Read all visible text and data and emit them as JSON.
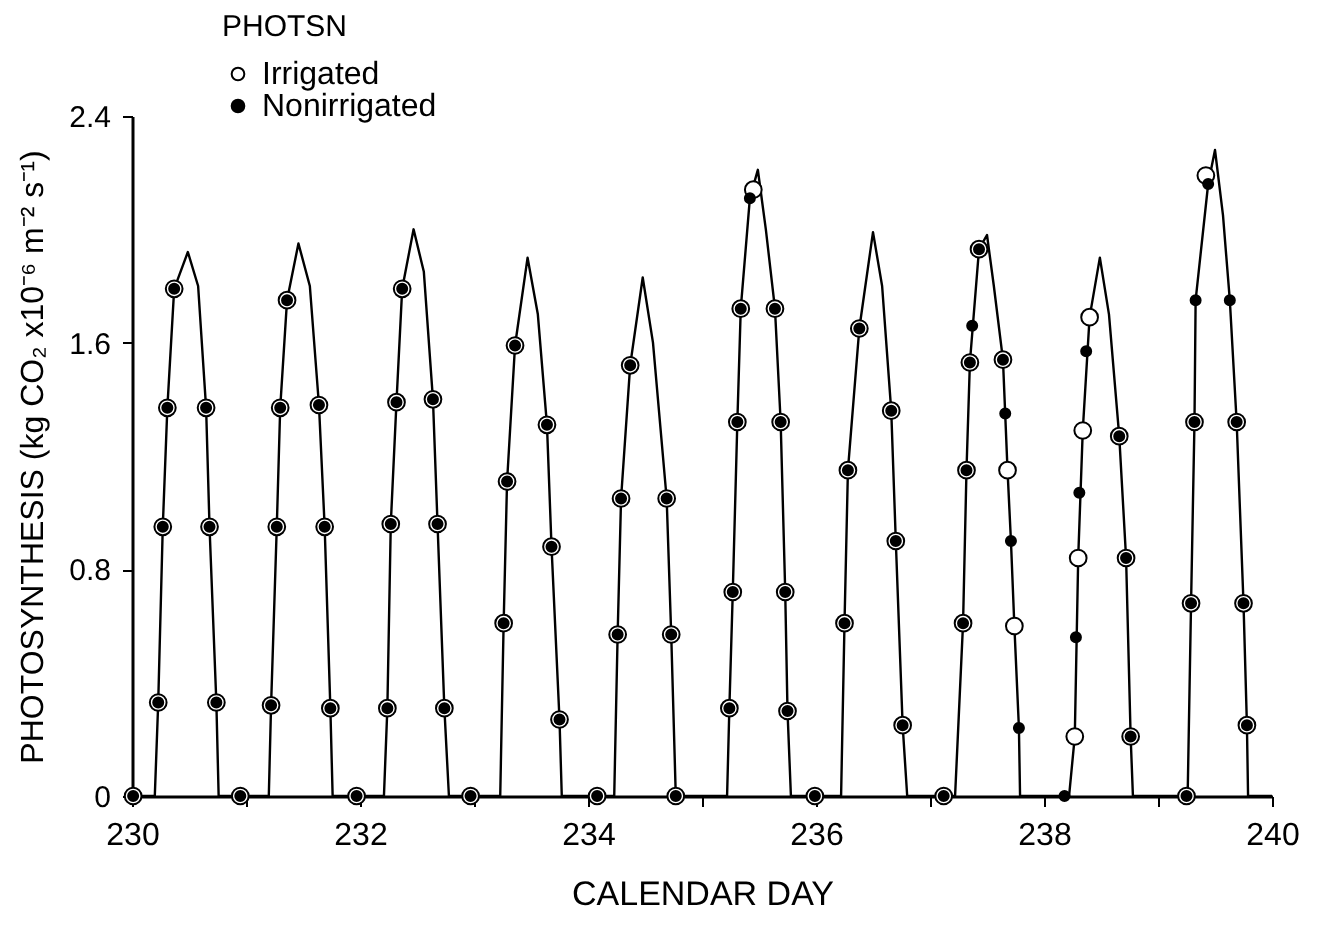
{
  "chart_data": {
    "type": "line",
    "xlabel": "CALENDAR DAY",
    "ylabel": "PHOTOSYNTHESIS (kg CO₂ x10⁻⁶ m⁻² s⁻¹)",
    "legend_title": "PHOTSN",
    "legend": "top left",
    "grid": false,
    "xlim": [
      230,
      240
    ],
    "ylim": [
      0,
      2.4
    ],
    "xticks": [
      230,
      {
        "value": 231,
        "label": null
      },
      232,
      {
        "value": 233,
        "label": null
      },
      234,
      {
        "value": 235,
        "label": null
      },
      236,
      {
        "value": 237,
        "label": null
      },
      238,
      {
        "value": 239,
        "label": null
      },
      240
    ],
    "yticks": [
      0,
      0.8,
      1.6,
      2.4
    ],
    "series": [
      {
        "type": "line",
        "color": "#000000",
        "marker": "none",
        "line_style": "solid",
        "x": [
          230,
          230.2,
          230.23,
          230.27,
          230.31,
          230.37,
          230.49,
          230.58,
          230.65,
          230.68,
          230.74,
          230.76,
          231.2,
          231.22,
          231.27,
          231.3,
          231.36,
          231.46,
          231.56,
          231.64,
          231.69,
          231.74,
          231.76,
          232.21,
          232.24,
          232.27,
          232.32,
          232.37,
          232.47,
          232.56,
          232.64,
          232.68,
          232.74,
          232.78,
          233.23,
          233.26,
          233.29,
          233.36,
          233.47,
          233.56,
          233.64,
          233.68,
          233.75,
          233.77,
          234.23,
          234.26,
          234.29,
          234.37,
          234.48,
          234.57,
          234.69,
          234.73,
          234.77,
          235.22,
          235.24,
          235.27,
          235.31,
          235.34,
          235.42,
          235.49,
          235.56,
          235.64,
          235.69,
          235.73,
          235.75,
          235.78,
          236.22,
          236.25,
          236.28,
          236.38,
          236.5,
          236.58,
          236.66,
          236.7,
          236.76,
          236.8,
          237.22,
          237.29,
          237.32,
          237.35,
          237.43,
          237.5,
          237.56,
          237.64,
          237.68,
          237.71,
          237.74,
          237.78,
          237.79,
          238.22,
          238.27,
          238.3,
          238.34,
          238.4,
          238.49,
          238.57,
          238.66,
          238.72,
          238.76,
          238.78,
          239.26,
          239.29,
          239.32,
          239.33,
          239.44,
          239.5,
          239.57,
          239.63,
          239.69,
          239.75,
          239.78,
          239.79,
          240
        ],
        "values": [
          0,
          0,
          0.33,
          0.95,
          1.37,
          1.79,
          1.92,
          1.8,
          1.37,
          0.95,
          0.33,
          0,
          0,
          0.32,
          0.95,
          1.37,
          1.75,
          1.95,
          1.8,
          1.38,
          0.95,
          0.31,
          0,
          0,
          0.31,
          0.96,
          1.39,
          1.79,
          2.0,
          1.85,
          1.4,
          0.96,
          0.31,
          0,
          0,
          0.61,
          1.11,
          1.59,
          1.9,
          1.7,
          1.31,
          0.88,
          0.27,
          0,
          0,
          0.57,
          1.05,
          1.52,
          1.83,
          1.6,
          1.05,
          0.57,
          0,
          0,
          0.31,
          0.72,
          1.32,
          1.72,
          2.11,
          2.21,
          2.0,
          1.72,
          1.32,
          0.72,
          0.3,
          0,
          0,
          0.61,
          1.15,
          1.65,
          1.99,
          1.8,
          1.36,
          0.9,
          0.25,
          0,
          0,
          0.61,
          1.15,
          1.53,
          1.93,
          1.98,
          1.8,
          1.54,
          1.15,
          0.9,
          0.6,
          0.24,
          0,
          0,
          0.21,
          0.84,
          1.29,
          1.69,
          1.9,
          1.7,
          1.27,
          0.84,
          0.21,
          0,
          0,
          0.68,
          1.32,
          1.75,
          2.16,
          2.28,
          2.05,
          1.75,
          1.32,
          0.68,
          0.25,
          0,
          0
        ]
      },
      {
        "type": "scatter",
        "name": "Irrigated",
        "color": "#ffffff",
        "marker": "circle",
        "x": [
          230.01,
          230.95,
          231.97,
          232.97,
          234.08,
          234.77,
          235.99,
          237.12,
          239.25,
          230.23,
          230.27,
          230.31,
          230.37,
          230.65,
          230.68,
          230.74,
          231.22,
          231.27,
          231.3,
          231.36,
          231.64,
          231.69,
          231.74,
          232.24,
          232.27,
          232.32,
          232.37,
          232.64,
          232.68,
          232.74,
          233.26,
          233.29,
          233.36,
          233.64,
          233.68,
          233.75,
          234.26,
          234.29,
          234.37,
          234.69,
          234.73,
          235.24,
          235.27,
          235.31,
          235.34,
          235.45,
          235.64,
          235.69,
          235.73,
          235.75,
          236.25,
          236.28,
          236.38,
          236.66,
          236.7,
          236.76,
          237.29,
          237.32,
          237.35,
          237.43,
          237.64,
          237.68,
          237.74,
          238.27,
          238.3,
          238.34,
          238.4,
          238.66,
          238.72,
          238.76,
          239.29,
          239.32,
          239.42,
          239.69,
          239.75,
          239.78
        ],
        "values": [
          0,
          0,
          0,
          0,
          0,
          0,
          0,
          0,
          0,
          0.33,
          0.95,
          1.37,
          1.79,
          1.37,
          0.95,
          0.33,
          0.32,
          0.95,
          1.37,
          1.75,
          1.38,
          0.95,
          0.31,
          0.31,
          0.96,
          1.39,
          1.79,
          1.4,
          0.96,
          0.31,
          0.61,
          1.11,
          1.59,
          1.31,
          0.88,
          0.27,
          0.57,
          1.05,
          1.52,
          1.05,
          0.57,
          0.31,
          0.72,
          1.32,
          1.72,
          2.14,
          1.72,
          1.32,
          0.72,
          0.3,
          0.61,
          1.15,
          1.65,
          1.36,
          0.9,
          0.25,
          0.61,
          1.15,
          1.53,
          1.93,
          1.54,
          1.15,
          0.6,
          0.21,
          0.84,
          1.29,
          1.69,
          1.27,
          0.84,
          0.21,
          0.68,
          1.32,
          2.19,
          1.32,
          0.68,
          0.25
        ]
      },
      {
        "type": "scatter",
        "name": "Nonirrigated",
        "color": "#000000",
        "marker": "circle",
        "x": [
          230.01,
          230.95,
          231.97,
          232.97,
          234.08,
          234.77,
          235.99,
          237.12,
          238.18,
          239.25,
          230.23,
          230.27,
          230.31,
          230.37,
          230.65,
          230.68,
          230.74,
          231.22,
          231.27,
          231.3,
          231.36,
          231.64,
          231.69,
          231.74,
          232.24,
          232.27,
          232.32,
          232.37,
          232.64,
          232.68,
          232.74,
          233.26,
          233.29,
          233.36,
          233.64,
          233.68,
          233.75,
          234.26,
          234.29,
          234.37,
          234.69,
          234.73,
          235.24,
          235.27,
          235.31,
          235.34,
          235.42,
          235.64,
          235.69,
          235.73,
          235.75,
          236.25,
          236.28,
          236.38,
          236.66,
          236.7,
          236.76,
          237.29,
          237.32,
          237.35,
          237.37,
          237.43,
          237.64,
          237.66,
          237.71,
          237.78,
          238.28,
          238.31,
          238.37,
          238.66,
          238.72,
          238.76,
          239.29,
          239.32,
          239.33,
          239.44,
          239.63,
          239.69,
          239.75,
          239.78
        ],
        "values": [
          0,
          0,
          0,
          0,
          0,
          0,
          0,
          0,
          0,
          0,
          0.33,
          0.95,
          1.37,
          1.79,
          1.37,
          0.95,
          0.33,
          0.32,
          0.95,
          1.37,
          1.75,
          1.38,
          0.95,
          0.31,
          0.31,
          0.96,
          1.39,
          1.79,
          1.4,
          0.96,
          0.31,
          0.61,
          1.11,
          1.59,
          1.31,
          0.88,
          0.27,
          0.57,
          1.05,
          1.52,
          1.05,
          0.57,
          0.31,
          0.72,
          1.32,
          1.72,
          2.11,
          1.72,
          1.32,
          0.72,
          0.3,
          0.61,
          1.15,
          1.65,
          1.36,
          0.9,
          0.25,
          0.61,
          1.15,
          1.53,
          1.66,
          1.93,
          1.54,
          1.35,
          0.9,
          0.24,
          0.56,
          1.07,
          1.57,
          1.27,
          0.84,
          0.21,
          0.68,
          1.32,
          1.75,
          2.16,
          1.75,
          1.32,
          0.68,
          0.25
        ]
      }
    ]
  }
}
